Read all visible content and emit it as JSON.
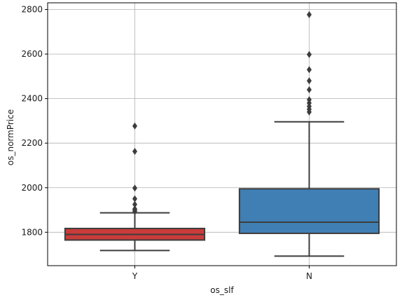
{
  "chart_data": {
    "type": "box",
    "xlabel": "os_slf",
    "ylabel": "os_normPrice",
    "ylim": [
      1650,
      2830
    ],
    "yticks": [
      1800,
      2000,
      2200,
      2400,
      2600,
      2800
    ],
    "grid": true,
    "categories": [
      "Y",
      "N"
    ],
    "boxes": [
      {
        "category": "Y",
        "color": "#c93c3a",
        "q1": 1765,
        "median": 1790,
        "q3": 1817,
        "whisker_low": 1718,
        "whisker_high": 1887,
        "outliers": [
          1893,
          1900,
          1905,
          1925,
          1950,
          1998,
          2163,
          2277
        ]
      },
      {
        "category": "N",
        "color": "#3f7fb4",
        "q1": 1795,
        "median": 1845,
        "q3": 1995,
        "whisker_low": 1693,
        "whisker_high": 2296,
        "outliers": [
          2340,
          2352,
          2365,
          2380,
          2395,
          2440,
          2480,
          2530,
          2598,
          2777
        ]
      }
    ]
  }
}
